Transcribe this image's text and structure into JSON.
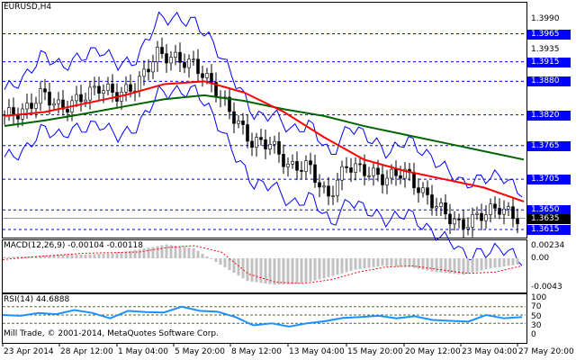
{
  "symbol_title": "EURUSD,H4",
  "macd_title": "MACD(12,26,9) -0.00104 -0.00118",
  "rsi_title": "RSI(14) 44.6888",
  "copyright": "Mill Trade, © 2001-2014, MetaQuotes Software Corp.",
  "colors": {
    "levels": "#0000ff",
    "ma_fast": "#ff0000",
    "ma_slow": "#006400",
    "bands": "#0000ff",
    "rsi": "#1e90ff",
    "macd_hist": "#c0c0c0",
    "macd_signal": "#ff0000"
  },
  "price_axis": {
    "ticks": [
      "1.3990",
      "1.3935"
    ],
    "levels": [
      "1.3965",
      "1.3915",
      "1.3880",
      "1.3820",
      "1.3765",
      "1.3705",
      "1.3650",
      "1.3615"
    ],
    "current": "1.3635"
  },
  "macd_axis": [
    "0.00234",
    "0.00",
    "-0.0043"
  ],
  "rsi_axis": [
    "100",
    "70",
    "50",
    "30",
    "0"
  ],
  "time_axis": [
    "23 Apr 2014",
    "28 Apr 12:00",
    "1 May 04:00",
    "5 May 20:00",
    "8 May 12:00",
    "13 May 04:00",
    "15 May 20:00",
    "20 May 12:00",
    "23 May 04:00",
    "27 May 20:00"
  ],
  "chart_data": {
    "type": "candlestick",
    "close_path": [
      1.382,
      1.3825,
      1.386,
      1.383,
      1.385,
      1.387,
      1.3855,
      1.3875,
      1.393,
      1.392,
      1.391,
      1.387,
      1.382,
      1.377,
      1.377,
      1.3725,
      1.373,
      1.367,
      1.373,
      1.372,
      1.3705,
      1.372,
      1.368,
      1.365,
      1.362,
      1.364,
      1.3655,
      1.3635
    ],
    "ma_fast": [
      1.3818,
      1.3825,
      1.384,
      1.3855,
      1.3875,
      1.388,
      1.386,
      1.3825,
      1.378,
      1.374,
      1.372,
      1.3705,
      1.369,
      1.3665
    ],
    "ma_slow": [
      1.38,
      1.381,
      1.3822,
      1.3835,
      1.3848,
      1.3855,
      1.3845,
      1.383,
      1.3818,
      1.38,
      1.3785,
      1.377,
      1.3755,
      1.374
    ],
    "rsi": [
      50,
      48,
      55,
      52,
      62,
      55,
      42,
      60,
      57,
      56,
      70,
      60,
      58,
      45,
      25,
      30,
      22,
      30,
      35,
      43,
      45,
      48,
      42,
      47,
      38,
      36,
      34,
      50,
      42,
      45
    ],
    "rsi_levels": [
      70,
      50,
      30
    ],
    "macd_hist": [
      0.0002,
      0.0003,
      0.0006,
      0.0006,
      0.0008,
      0.0014,
      0.0022,
      0.0016,
      -0.001,
      -0.0036,
      -0.0042,
      -0.004,
      -0.003,
      -0.0018,
      -0.0012,
      -0.0014,
      -0.0022,
      -0.0026,
      -0.0016,
      -0.001
    ],
    "macd_signal": [
      -0.0002,
      0.0002,
      0.0005,
      0.0008,
      0.0009,
      0.001,
      0.0017,
      0.002,
      0.001,
      -0.0025,
      -0.0038,
      -0.004,
      -0.0034,
      -0.0022,
      -0.0014,
      -0.0012,
      -0.0018,
      -0.0024,
      -0.0022,
      -0.0012
    ]
  }
}
